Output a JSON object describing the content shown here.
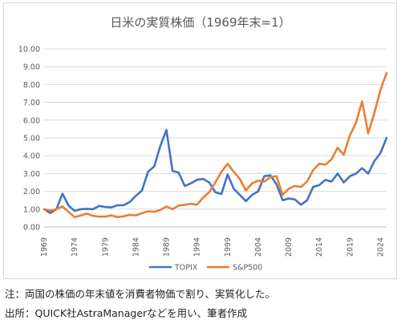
{
  "chart_data": {
    "type": "line",
    "title": "日米の実質株価（1969年末=1）",
    "xlabel": "",
    "ylabel": "",
    "ylim": [
      0,
      10
    ],
    "y_ticks": [
      "0.00",
      "1.00",
      "2.00",
      "3.00",
      "4.00",
      "5.00",
      "6.00",
      "7.00",
      "8.00",
      "9.00",
      "10.00"
    ],
    "x_ticks": [
      "1969",
      "1974",
      "1979",
      "1984",
      "1989",
      "1994",
      "1999",
      "2004",
      "2009",
      "2014",
      "2019",
      "2024"
    ],
    "grid": true,
    "legend_position": "bottom",
    "x": [
      1969,
      1970,
      1971,
      1972,
      1973,
      1974,
      1975,
      1976,
      1977,
      1978,
      1979,
      1980,
      1981,
      1982,
      1983,
      1984,
      1985,
      1986,
      1987,
      1988,
      1989,
      1990,
      1991,
      1992,
      1993,
      1994,
      1995,
      1996,
      1997,
      1998,
      1999,
      2000,
      2001,
      2002,
      2003,
      2004,
      2005,
      2006,
      2007,
      2008,
      2009,
      2010,
      2011,
      2012,
      2013,
      2014,
      2015,
      2016,
      2017,
      2018,
      2019,
      2020,
      2021,
      2022,
      2023,
      2024,
      2025
    ],
    "series": [
      {
        "name": "TOPIX",
        "color": "#4472c4",
        "values": [
          1.0,
          0.78,
          1.0,
          1.87,
          1.2,
          0.9,
          1.0,
          1.02,
          1.0,
          1.18,
          1.12,
          1.1,
          1.22,
          1.22,
          1.4,
          1.75,
          2.05,
          3.1,
          3.4,
          4.55,
          5.45,
          3.15,
          3.05,
          2.3,
          2.45,
          2.65,
          2.7,
          2.5,
          1.95,
          1.85,
          2.95,
          2.15,
          1.8,
          1.45,
          1.8,
          2.0,
          2.85,
          2.9,
          2.4,
          1.5,
          1.6,
          1.55,
          1.25,
          1.5,
          2.25,
          2.35,
          2.65,
          2.55,
          3.0,
          2.5,
          2.85,
          3.0,
          3.3,
          3.0,
          3.7,
          4.15,
          5.0
        ]
      },
      {
        "name": "S&P500",
        "color": "#ed7d31",
        "values": [
          1.0,
          0.92,
          1.0,
          1.15,
          0.85,
          0.55,
          0.65,
          0.75,
          0.62,
          0.58,
          0.58,
          0.65,
          0.55,
          0.6,
          0.68,
          0.65,
          0.78,
          0.88,
          0.85,
          0.95,
          1.15,
          1.0,
          1.2,
          1.25,
          1.3,
          1.25,
          1.65,
          1.95,
          2.5,
          3.1,
          3.55,
          3.1,
          2.7,
          2.05,
          2.45,
          2.6,
          2.55,
          2.8,
          2.85,
          1.8,
          2.15,
          2.3,
          2.25,
          2.55,
          3.2,
          3.55,
          3.5,
          3.8,
          4.45,
          4.05,
          5.15,
          5.85,
          7.05,
          5.25,
          6.4,
          7.7,
          8.65
        ]
      }
    ]
  },
  "notes": {
    "line1": "注：両国の株価の年末値を消費者物価で割り、実質化した。",
    "line2": "出所：QUICK社AstraManagerなどを用い、筆者作成"
  }
}
